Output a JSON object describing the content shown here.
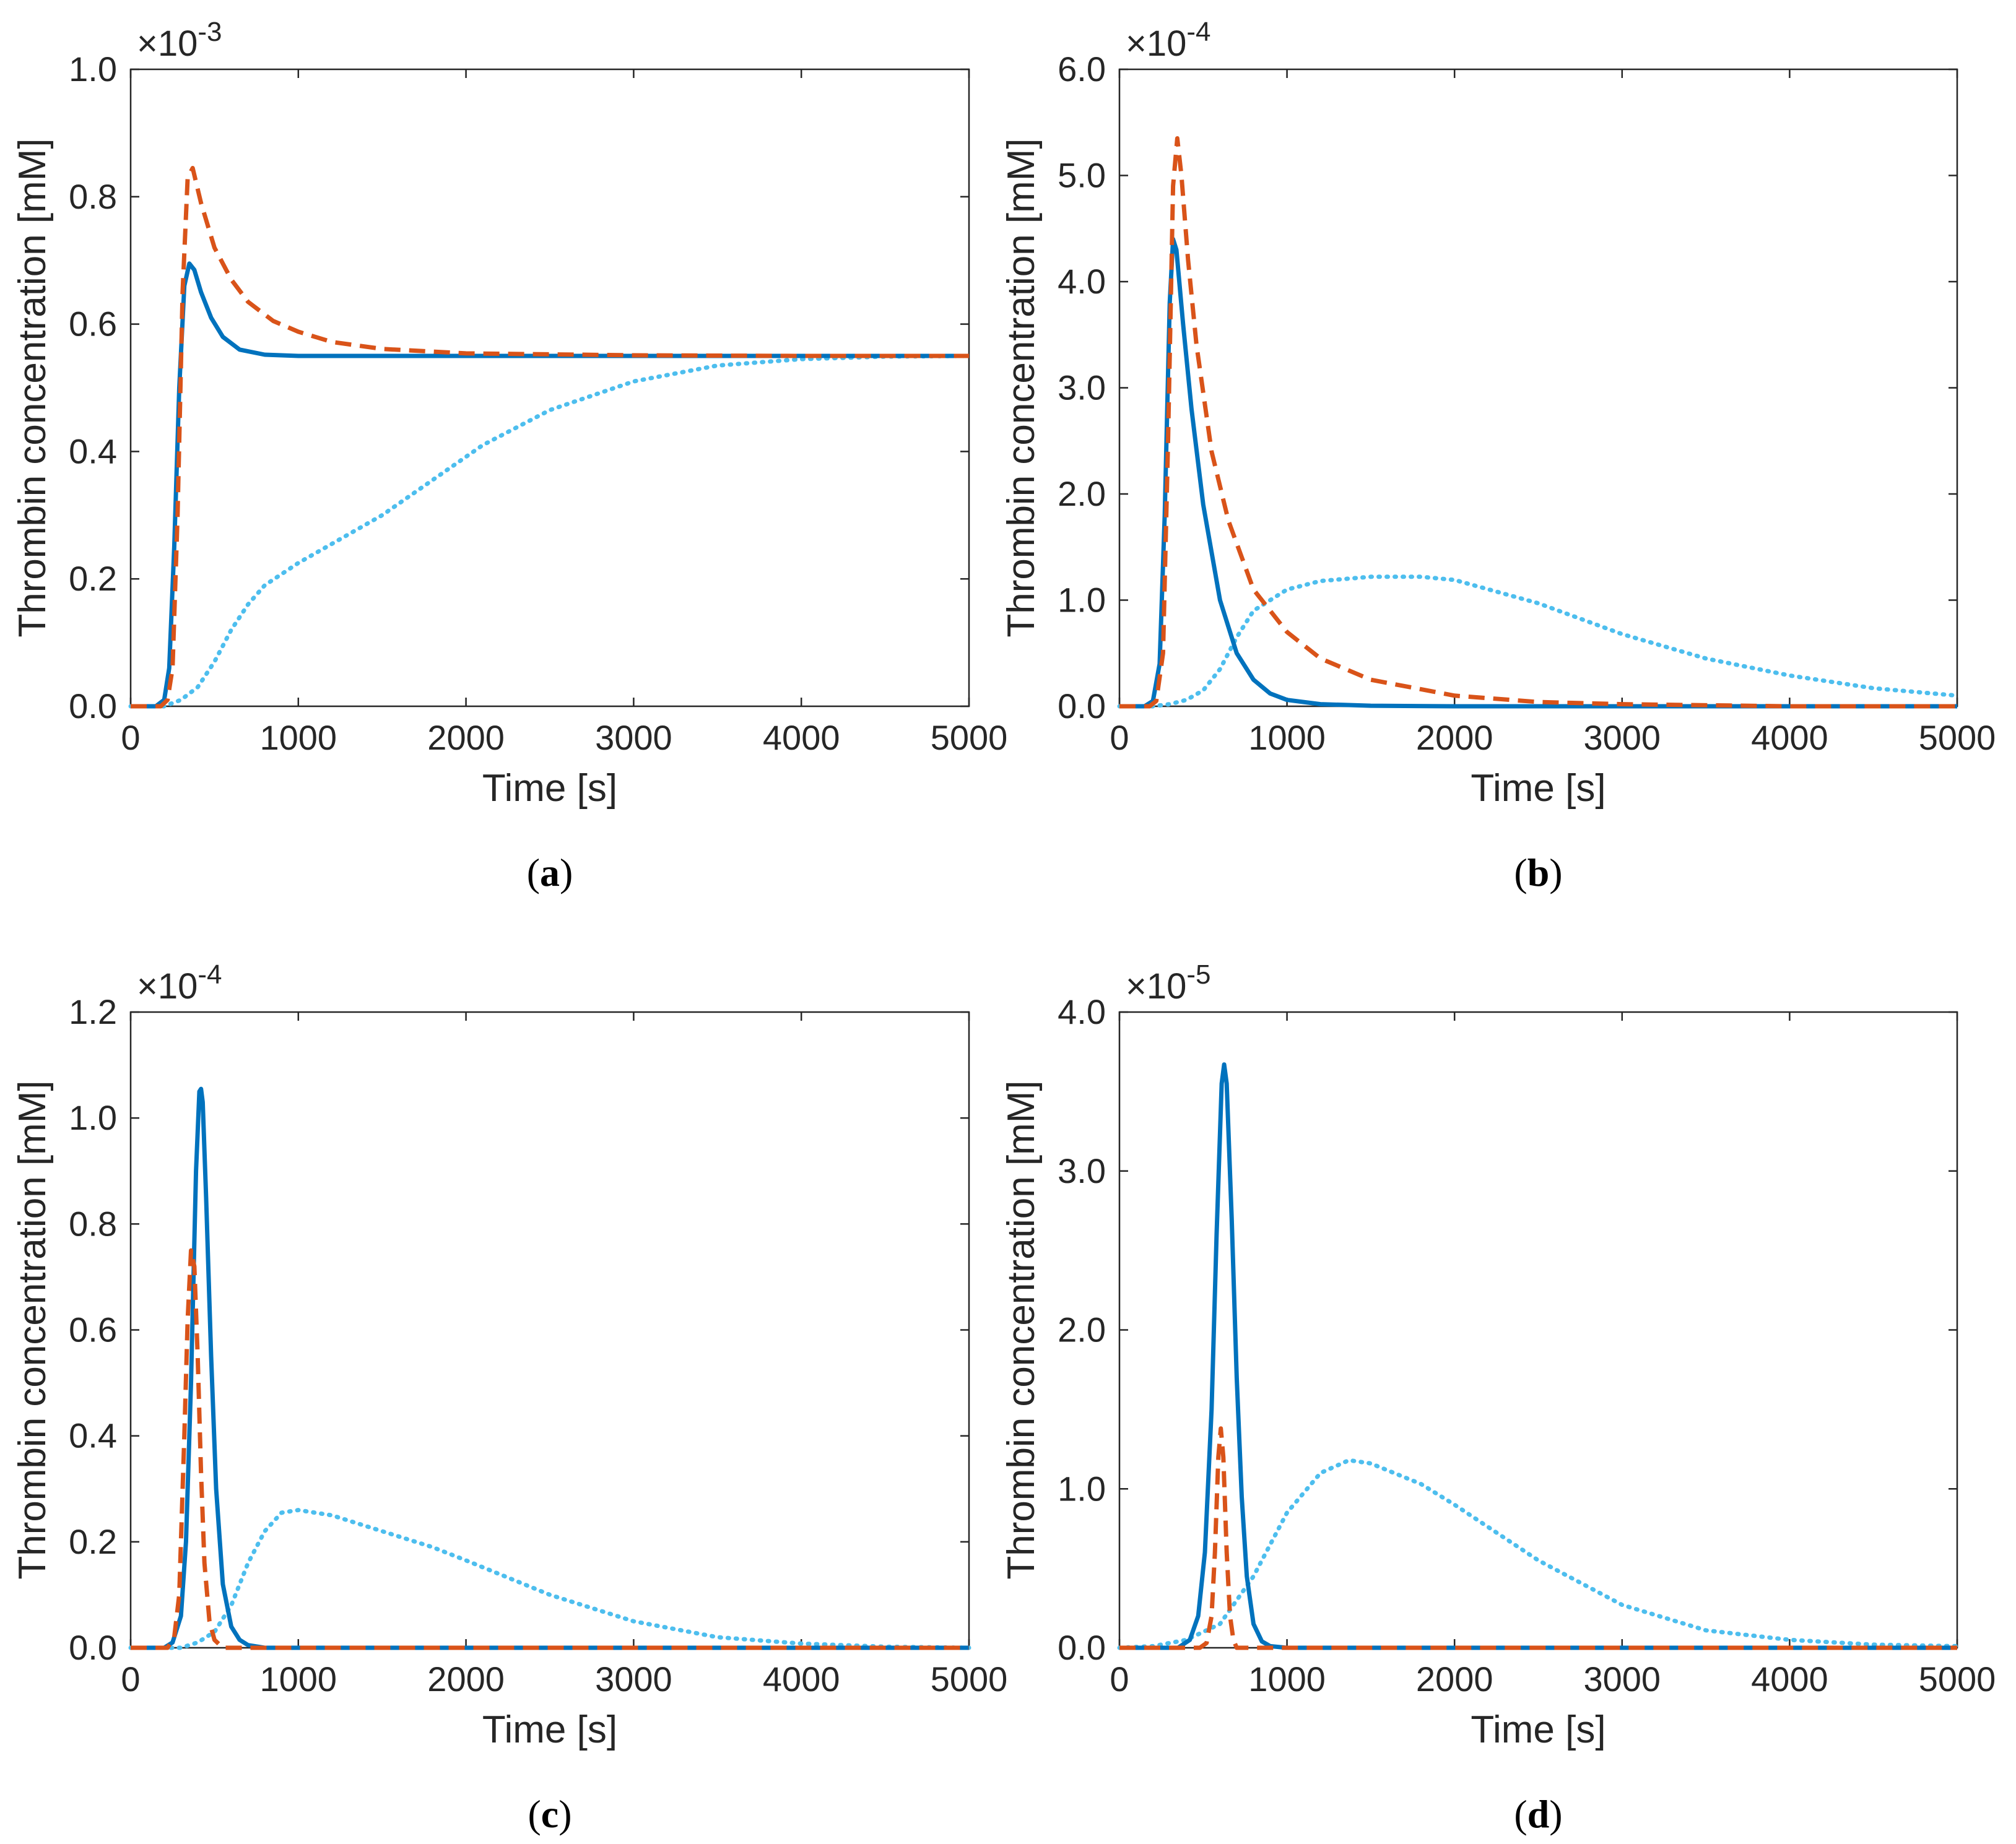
{
  "colors": {
    "solid": "#0072bd",
    "dashed": "#d95319",
    "dotted": "#4dbeee",
    "axis": "#262626",
    "background": "#ffffff"
  },
  "chart_data": [
    {
      "id": "a",
      "caption_label": "a",
      "type": "line",
      "ylabel": "Thrombin concentration [mM]",
      "xlabel": "Time [s]",
      "exponent_base": "×10",
      "exponent_power": "-3",
      "xlim": [
        0,
        5000
      ],
      "ylim": [
        0,
        1.0
      ],
      "xticks": [
        0,
        1000,
        2000,
        3000,
        4000,
        5000
      ],
      "xtick_labels": [
        "0",
        "1000",
        "2000",
        "3000",
        "4000",
        "5000"
      ],
      "yticks": [
        0,
        0.2,
        0.4,
        0.6,
        0.8,
        1.0
      ],
      "ytick_labels": [
        "0.0",
        "0.2",
        "0.4",
        "0.6",
        "0.8",
        "1.0"
      ],
      "series": [
        {
          "name": "solid",
          "style": "solid",
          "x": [
            0,
            150,
            200,
            230,
            260,
            290,
            320,
            350,
            380,
            420,
            480,
            550,
            650,
            800,
            1000,
            1500,
            2000,
            3000,
            4000,
            5000
          ],
          "y": [
            0,
            0,
            0.01,
            0.06,
            0.25,
            0.5,
            0.66,
            0.695,
            0.685,
            0.65,
            0.61,
            0.58,
            0.56,
            0.552,
            0.55,
            0.55,
            0.55,
            0.55,
            0.55,
            0.55
          ]
        },
        {
          "name": "dashed",
          "style": "dashed",
          "x": [
            0,
            180,
            220,
            250,
            280,
            310,
            340,
            370,
            420,
            500,
            600,
            700,
            850,
            1000,
            1200,
            1500,
            2000,
            3000,
            4000,
            5000
          ],
          "y": [
            0,
            0,
            0.01,
            0.06,
            0.3,
            0.65,
            0.83,
            0.845,
            0.79,
            0.72,
            0.67,
            0.635,
            0.605,
            0.588,
            0.572,
            0.561,
            0.554,
            0.551,
            0.55,
            0.55
          ]
        },
        {
          "name": "dotted",
          "style": "dotted",
          "x": [
            0,
            200,
            300,
            400,
            500,
            600,
            700,
            800,
            1000,
            1200,
            1500,
            1800,
            2100,
            2500,
            3000,
            3500,
            4000,
            4500,
            5000
          ],
          "y": [
            0,
            0,
            0.01,
            0.03,
            0.07,
            0.12,
            0.16,
            0.19,
            0.225,
            0.255,
            0.3,
            0.355,
            0.41,
            0.465,
            0.51,
            0.535,
            0.545,
            0.549,
            0.55
          ]
        }
      ]
    },
    {
      "id": "b",
      "caption_label": "b",
      "type": "line",
      "ylabel": "Thrombin concentration [mM]",
      "xlabel": "Time [s]",
      "exponent_base": "×10",
      "exponent_power": "-4",
      "xlim": [
        0,
        5000
      ],
      "ylim": [
        0,
        6.0
      ],
      "xticks": [
        0,
        1000,
        2000,
        3000,
        4000,
        5000
      ],
      "xtick_labels": [
        "0",
        "1000",
        "2000",
        "3000",
        "4000",
        "5000"
      ],
      "yticks": [
        0,
        1,
        2,
        3,
        4,
        5,
        6
      ],
      "ytick_labels": [
        "0.0",
        "1.0",
        "2.0",
        "3.0",
        "4.0",
        "5.0",
        "6.0"
      ],
      "series": [
        {
          "name": "solid",
          "style": "solid",
          "x": [
            0,
            150,
            200,
            240,
            270,
            300,
            320,
            340,
            380,
            430,
            500,
            600,
            700,
            800,
            900,
            1000,
            1200,
            1500,
            2000,
            3000,
            5000
          ],
          "y": [
            0,
            0,
            0.05,
            0.4,
            1.8,
            3.8,
            4.4,
            4.3,
            3.6,
            2.8,
            1.9,
            1.0,
            0.5,
            0.25,
            0.12,
            0.06,
            0.02,
            0.005,
            0,
            0,
            0
          ]
        },
        {
          "name": "dashed",
          "style": "dashed",
          "x": [
            0,
            180,
            220,
            260,
            290,
            320,
            345,
            370,
            410,
            460,
            550,
            650,
            800,
            1000,
            1200,
            1500,
            2000,
            2500,
            3000,
            4000,
            5000
          ],
          "y": [
            0,
            0,
            0.05,
            0.5,
            2.5,
            4.9,
            5.35,
            5.0,
            4.2,
            3.4,
            2.4,
            1.75,
            1.1,
            0.7,
            0.45,
            0.25,
            0.1,
            0.04,
            0.02,
            0,
            0
          ]
        },
        {
          "name": "dotted",
          "style": "dotted",
          "x": [
            0,
            200,
            300,
            400,
            500,
            600,
            700,
            800,
            1000,
            1200,
            1500,
            1800,
            2000,
            2500,
            3000,
            3500,
            4000,
            4500,
            5000
          ],
          "y": [
            0,
            0,
            0.02,
            0.06,
            0.15,
            0.35,
            0.65,
            0.9,
            1.1,
            1.18,
            1.22,
            1.22,
            1.19,
            0.97,
            0.68,
            0.45,
            0.29,
            0.17,
            0.1
          ]
        }
      ]
    },
    {
      "id": "c",
      "caption_label": "c",
      "type": "line",
      "ylabel": "Thrombin concentration [mM]",
      "xlabel": "Time [s]",
      "exponent_base": "×10",
      "exponent_power": "-4",
      "xlim": [
        0,
        5000
      ],
      "ylim": [
        0,
        1.2
      ],
      "xticks": [
        0,
        1000,
        2000,
        3000,
        4000,
        5000
      ],
      "xtick_labels": [
        "0",
        "1000",
        "2000",
        "3000",
        "4000",
        "5000"
      ],
      "yticks": [
        0,
        0.2,
        0.4,
        0.6,
        0.8,
        1.0,
        1.2
      ],
      "ytick_labels": [
        "0.0",
        "0.2",
        "0.4",
        "0.6",
        "0.8",
        "1.0",
        "1.2"
      ],
      "series": [
        {
          "name": "solid",
          "style": "solid",
          "x": [
            0,
            200,
            250,
            300,
            330,
            360,
            390,
            410,
            420,
            430,
            450,
            480,
            510,
            550,
            600,
            650,
            700,
            800,
            1000,
            5000
          ],
          "y": [
            0,
            0,
            0.01,
            0.06,
            0.2,
            0.5,
            0.9,
            1.05,
            1.055,
            1.03,
            0.85,
            0.55,
            0.3,
            0.12,
            0.04,
            0.015,
            0.005,
            0,
            0,
            0
          ]
        },
        {
          "name": "dashed",
          "style": "dashed",
          "x": [
            0,
            220,
            260,
            290,
            320,
            340,
            360,
            380,
            400,
            420,
            440,
            470,
            500,
            550,
            600,
            5000
          ],
          "y": [
            0,
            0,
            0.02,
            0.1,
            0.4,
            0.62,
            0.75,
            0.72,
            0.55,
            0.33,
            0.16,
            0.05,
            0.015,
            0,
            0,
            0
          ]
        },
        {
          "name": "dotted",
          "style": "dotted",
          "x": [
            0,
            300,
            400,
            500,
            600,
            700,
            800,
            900,
            1000,
            1200,
            1500,
            1800,
            2000,
            2500,
            3000,
            3500,
            4000,
            4500,
            5000
          ],
          "y": [
            0,
            0,
            0.01,
            0.03,
            0.08,
            0.16,
            0.22,
            0.255,
            0.26,
            0.25,
            0.22,
            0.19,
            0.165,
            0.1,
            0.05,
            0.02,
            0.008,
            0.002,
            0
          ]
        }
      ]
    },
    {
      "id": "d",
      "caption_label": "d",
      "type": "line",
      "ylabel": "Thrombin concentration [mM]",
      "xlabel": "Time [s]",
      "exponent_base": "×10",
      "exponent_power": "-5",
      "xlim": [
        0,
        5000
      ],
      "ylim": [
        0,
        4.0
      ],
      "xticks": [
        0,
        1000,
        2000,
        3000,
        4000,
        5000
      ],
      "xtick_labels": [
        "0",
        "1000",
        "2000",
        "3000",
        "4000",
        "5000"
      ],
      "yticks": [
        0,
        1,
        2,
        3,
        4
      ],
      "ytick_labels": [
        "0.0",
        "1.0",
        "2.0",
        "3.0",
        "4.0"
      ],
      "series": [
        {
          "name": "solid",
          "style": "solid",
          "x": [
            0,
            350,
            420,
            470,
            510,
            550,
            580,
            610,
            625,
            640,
            670,
            700,
            730,
            760,
            800,
            850,
            900,
            1000,
            5000
          ],
          "y": [
            0,
            0,
            0.05,
            0.2,
            0.6,
            1.5,
            2.6,
            3.55,
            3.67,
            3.55,
            2.7,
            1.7,
            0.95,
            0.45,
            0.15,
            0.04,
            0.01,
            0,
            0
          ]
        },
        {
          "name": "dashed",
          "style": "dashed",
          "x": [
            0,
            480,
            520,
            550,
            570,
            590,
            605,
            620,
            640,
            660,
            680,
            700,
            5000
          ],
          "y": [
            0,
            0,
            0.03,
            0.2,
            0.6,
            1.2,
            1.38,
            1.2,
            0.6,
            0.2,
            0.05,
            0,
            0
          ]
        },
        {
          "name": "dotted",
          "style": "dotted",
          "x": [
            0,
            200,
            400,
            600,
            800,
            1000,
            1200,
            1370,
            1500,
            1800,
            2000,
            2500,
            3000,
            3500,
            4000,
            4500,
            5000
          ],
          "y": [
            0,
            0.01,
            0.05,
            0.15,
            0.45,
            0.85,
            1.1,
            1.18,
            1.16,
            1.03,
            0.9,
            0.55,
            0.27,
            0.11,
            0.05,
            0.02,
            0.01
          ]
        }
      ]
    }
  ]
}
